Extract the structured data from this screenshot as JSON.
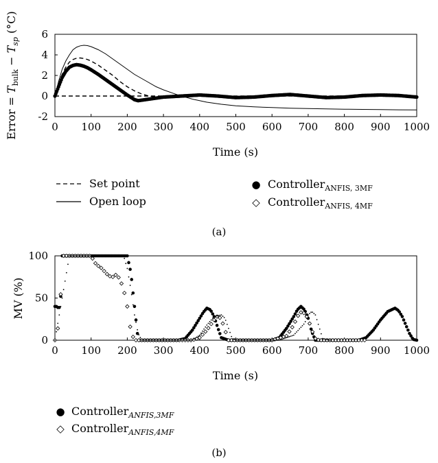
{
  "chart_data": [
    {
      "panel_label": "(a)",
      "type": "line",
      "ylabel": "Error = T_bulk − T_sp (°C)",
      "ylabel_parts": {
        "prefix": "Error = ",
        "t1": "T",
        "s1": "bulk",
        "minus": " − ",
        "t2": "T",
        "s2": "sp",
        "unit": " (°C)"
      },
      "xlabel": "Time (s)",
      "xlim": [
        0,
        1000
      ],
      "ylim": [
        -2,
        6
      ],
      "xticks": [
        0,
        100,
        200,
        300,
        400,
        500,
        600,
        700,
        800,
        900,
        1000
      ],
      "yticks": [
        -2,
        0,
        2,
        4,
        6
      ],
      "grid": false,
      "legend": [
        {
          "key": "set",
          "label": "Set point",
          "marker": "dashed"
        },
        {
          "key": "open",
          "label": "Open loop",
          "marker": "line"
        },
        {
          "key": "c3",
          "label_main": "Controller",
          "label_sub": "ANFIS, 3MF",
          "marker": "●"
        },
        {
          "key": "c4",
          "label_main": "Controller",
          "label_sub": "ANFIS, 4MF",
          "marker": "◇"
        }
      ],
      "series": [
        {
          "key": "set",
          "style": "dashed",
          "x": [
            0,
            1000
          ],
          "y": [
            0,
            0
          ]
        },
        {
          "key": "open",
          "style": "solid",
          "x": [
            0,
            10,
            20,
            30,
            40,
            50,
            60,
            70,
            80,
            90,
            100,
            120,
            140,
            160,
            180,
            200,
            220,
            250,
            280,
            300,
            340,
            380,
            420,
            460,
            500,
            550,
            600,
            650,
            700,
            750,
            800,
            850,
            900,
            950,
            1000
          ],
          "y": [
            0,
            1.4,
            2.6,
            3.4,
            4.0,
            4.5,
            4.75,
            4.88,
            4.93,
            4.9,
            4.8,
            4.5,
            4.1,
            3.6,
            3.1,
            2.6,
            2.1,
            1.5,
            0.9,
            0.6,
            0.1,
            -0.3,
            -0.6,
            -0.8,
            -0.95,
            -1.05,
            -1.12,
            -1.18,
            -1.22,
            -1.25,
            -1.28,
            -1.3,
            -1.32,
            -1.34,
            -1.35
          ]
        },
        {
          "key": "c4",
          "style": "dashed",
          "x": [
            0,
            10,
            20,
            30,
            40,
            50,
            60,
            70,
            80,
            90,
            100,
            120,
            140,
            160,
            180,
            200,
            220,
            240,
            260,
            280,
            300,
            340
          ],
          "y": [
            0,
            1.1,
            2.1,
            2.8,
            3.3,
            3.55,
            3.68,
            3.7,
            3.65,
            3.55,
            3.4,
            3.0,
            2.5,
            2.0,
            1.4,
            0.9,
            0.5,
            0.2,
            0.0,
            -0.1,
            -0.1,
            0.0
          ]
        },
        {
          "key": "c3",
          "style": "dots",
          "x": [
            0,
            10,
            20,
            30,
            40,
            50,
            60,
            70,
            80,
            90,
            100,
            120,
            140,
            160,
            180,
            200,
            220,
            230,
            250,
            280,
            300,
            350,
            400,
            450,
            500,
            550,
            600,
            650,
            700,
            750,
            800,
            850,
            900,
            950,
            1000
          ],
          "y": [
            0,
            0.9,
            1.8,
            2.4,
            2.8,
            2.98,
            3.05,
            3.0,
            2.9,
            2.75,
            2.55,
            2.1,
            1.6,
            1.1,
            0.6,
            0.1,
            -0.35,
            -0.45,
            -0.35,
            -0.2,
            -0.1,
            0.0,
            0.1,
            0.0,
            -0.15,
            -0.1,
            0.05,
            0.15,
            0.0,
            -0.15,
            -0.1,
            0.05,
            0.1,
            0.05,
            -0.1
          ]
        }
      ]
    },
    {
      "panel_label": "(b)",
      "type": "scatter",
      "ylabel": "MV (%)",
      "xlabel": "Time (s)",
      "xlim": [
        0,
        1000
      ],
      "ylim": [
        0,
        100
      ],
      "xticks": [
        0,
        100,
        200,
        300,
        400,
        500,
        600,
        700,
        800,
        900,
        1000
      ],
      "yticks": [
        0,
        50,
        100
      ],
      "grid": false,
      "legend": [
        {
          "key": "c3",
          "label_main": "Controller",
          "label_sub": "ANFIS,3MF",
          "marker": "●"
        },
        {
          "key": "c4",
          "label_main": "Controller",
          "label_sub": "ANFIS,4MF",
          "marker": "◇"
        }
      ],
      "series": [
        {
          "key": "c3",
          "marker": "filled-dot",
          "x": [
            0,
            5,
            10,
            15,
            20,
            30,
            60,
            100,
            140,
            160,
            170,
            190,
            200,
            210,
            220,
            230,
            260,
            300,
            340,
            360,
            380,
            400,
            410,
            420,
            430,
            440,
            450,
            460,
            480,
            520,
            560,
            600,
            620,
            640,
            660,
            670,
            680,
            690,
            700,
            710,
            720,
            760,
            800,
            840,
            860,
            880,
            900,
            920,
            940,
            950,
            960,
            970,
            980,
            990,
            1000
          ],
          "y": [
            40,
            40,
            38,
            40,
            100,
            100,
            100,
            100,
            100,
            100,
            100,
            100,
            100,
            80,
            40,
            0,
            0,
            0,
            0,
            2,
            12,
            26,
            33,
            38,
            36,
            28,
            15,
            3,
            0,
            0,
            0,
            0,
            3,
            14,
            28,
            36,
            40,
            36,
            26,
            10,
            0,
            0,
            0,
            0,
            3,
            12,
            24,
            34,
            38,
            35,
            28,
            18,
            8,
            1,
            0
          ]
        },
        {
          "key": "c4",
          "marker": "open-diamond",
          "x": [
            0,
            5,
            10,
            15,
            20,
            30,
            50,
            80,
            100,
            110,
            120,
            130,
            140,
            150,
            160,
            170,
            180,
            190,
            200,
            210,
            220,
            260,
            300,
            360,
            380,
            400,
            420,
            440,
            450,
            460,
            470,
            480,
            560,
            600,
            640,
            660,
            670,
            680,
            690,
            700,
            710,
            720,
            730,
            760,
            800,
            860
          ],
          "y": [
            0,
            35,
            0,
            43,
            100,
            100,
            100,
            100,
            100,
            92,
            88,
            85,
            80,
            76,
            75,
            78,
            72,
            60,
            40,
            10,
            0,
            0,
            0,
            0,
            0,
            3,
            12,
            24,
            29,
            25,
            12,
            0,
            0,
            0,
            5,
            18,
            28,
            33,
            32,
            25,
            12,
            2,
            0,
            0,
            0,
            0
          ]
        },
        {
          "key": "open",
          "marker": "small-dot",
          "x": [
            0,
            40,
            100,
            150,
            170,
            180,
            190,
            200,
            210,
            220,
            230,
            240,
            300,
            360,
            380,
            400,
            420,
            440,
            460,
            470,
            480,
            490,
            500,
            580,
            620,
            660,
            690,
            700,
            710,
            720,
            730,
            740,
            760
          ],
          "y": [
            0,
            100,
            100,
            100,
            100,
            100,
            100,
            85,
            60,
            30,
            8,
            0,
            0,
            0,
            0,
            6,
            18,
            28,
            30,
            26,
            14,
            2,
            0,
            0,
            0,
            6,
            20,
            30,
            34,
            30,
            16,
            2,
            0
          ]
        }
      ]
    }
  ],
  "panel_a": {
    "title": "(a)",
    "xlabel": "Time (s)",
    "ylabel_prefix": "Error = ",
    "ylabel_t1": "T",
    "ylabel_s1": "bulk",
    "ylabel_minus": " − ",
    "ylabel_t2": "T",
    "ylabel_s2": "sp",
    "ylabel_unit": " (°C)",
    "legend_set": "Set point",
    "legend_open": "Open loop",
    "legend_c3_main": "Controller",
    "legend_c3_sub": "ANFIS, 3MF",
    "legend_c4_main": "Controller",
    "legend_c4_sub": "ANFIS, 4MF",
    "marker_c3": "●",
    "marker_c4": "◇"
  },
  "panel_b": {
    "title": "(b)",
    "xlabel": "Time (s)",
    "ylabel": "MV (%)",
    "legend_c3_main": "Controller",
    "legend_c3_sub": "ANFIS,3MF",
    "legend_c4_main": "Controller",
    "legend_c4_sub": "ANFIS,4MF",
    "marker_c3": "●",
    "marker_c4": "◇"
  }
}
